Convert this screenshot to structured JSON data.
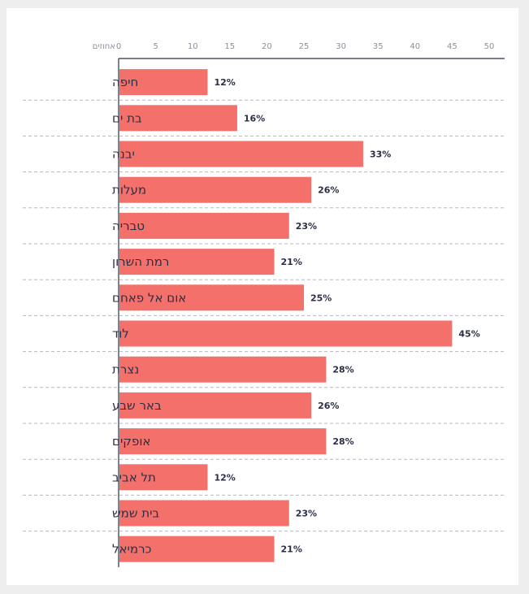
{
  "chart_data": {
    "type": "bar",
    "orientation": "horizontal",
    "axis_unit_label": "אחוזים",
    "x_ticks": [
      0,
      5,
      10,
      15,
      20,
      25,
      30,
      35,
      40,
      45,
      50
    ],
    "xlim": [
      0,
      50
    ],
    "categories": [
      "חיפה",
      "בת ים",
      "יבנה",
      "מעלות",
      "טבריה",
      "רמת השרון",
      "אום אל פאחם",
      "לוד",
      "נצרת",
      "באר שבע",
      "אופקים",
      "תל אביב",
      "בית שמש",
      "כרמיאל"
    ],
    "values": [
      12,
      16,
      33,
      26,
      23,
      21,
      25,
      45,
      28,
      26,
      28,
      12,
      23,
      21
    ],
    "value_labels": [
      "12%",
      "16%",
      "33%",
      "26%",
      "23%",
      "21%",
      "25%",
      "45%",
      "28%",
      "26%",
      "28%",
      "12%",
      "23%",
      "21%"
    ],
    "bar_color": "#f4716b",
    "grid": "horizontal dashed separators",
    "legend": "none"
  }
}
